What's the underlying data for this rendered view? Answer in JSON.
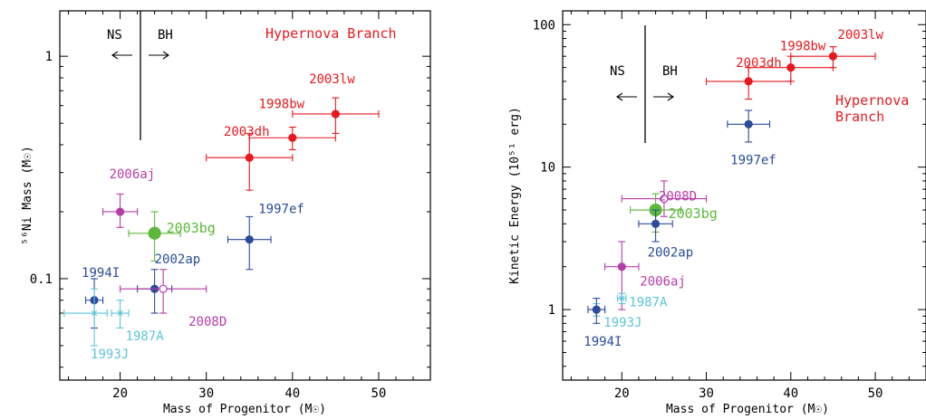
{
  "chart_data": [
    {
      "type": "scatter",
      "yscale": "log",
      "xlabel": "Mass of Progenitor (M☉)",
      "ylabel": "⁵⁶Ni Mass (M☉)",
      "xlim": [
        13,
        56
      ],
      "ylim": [
        0.035,
        1.6
      ],
      "xticks": [
        20,
        30,
        40,
        50
      ],
      "yticks": [
        0.1,
        1
      ],
      "yticklabels": [
        "0.1",
        "1"
      ],
      "divider_x": 22.5,
      "ns_label": "NS",
      "bh_label": "BH",
      "region_label": "Hypernova Branch",
      "region_color": "#e8191f",
      "points": [
        {
          "name": "2003lw",
          "x": 45,
          "y": 0.55,
          "xerr": [
            40,
            50
          ],
          "yerr": [
            0.45,
            0.65
          ],
          "color": "#e8191f",
          "filled": true,
          "size": "normal"
        },
        {
          "name": "1998bw",
          "x": 40,
          "y": 0.43,
          "xerr": [
            35,
            45
          ],
          "yerr": [
            0.38,
            0.48
          ],
          "color": "#e8191f",
          "filled": true,
          "size": "normal"
        },
        {
          "name": "2003dh",
          "x": 35,
          "y": 0.35,
          "xerr": [
            30,
            40
          ],
          "yerr": [
            0.25,
            0.45
          ],
          "color": "#e8191f",
          "filled": true,
          "size": "normal"
        },
        {
          "name": "2006aj",
          "x": 20,
          "y": 0.2,
          "xerr": [
            18,
            22
          ],
          "yerr": [
            0.17,
            0.24
          ],
          "color": "#b83ca8",
          "filled": true,
          "size": "normal"
        },
        {
          "name": "2003bg",
          "x": 24,
          "y": 0.16,
          "xerr": [
            21,
            27
          ],
          "yerr": [
            0.12,
            0.2
          ],
          "color": "#5db83b",
          "filled": true,
          "size": "large"
        },
        {
          "name": "1997ef",
          "x": 35,
          "y": 0.15,
          "xerr": [
            32.5,
            37.5
          ],
          "yerr": [
            0.11,
            0.19
          ],
          "color": "#2c4c9a",
          "filled": true,
          "size": "normal"
        },
        {
          "name": "2002ap",
          "x": 24,
          "y": 0.09,
          "xerr": [
            22,
            26
          ],
          "yerr": [
            0.07,
            0.11
          ],
          "color": "#2c4c9a",
          "filled": true,
          "size": "normal"
        },
        {
          "name": "2008D",
          "x": 25,
          "y": 0.09,
          "xerr": [
            20,
            30
          ],
          "yerr": [
            0.07,
            0.11
          ],
          "color": "#b83ca8",
          "filled": false,
          "size": "normal"
        },
        {
          "name": "1994I",
          "x": 17,
          "y": 0.08,
          "xerr": [
            16,
            18
          ],
          "yerr": [
            0.06,
            0.1
          ],
          "color": "#2c4c9a",
          "filled": true,
          "size": "normal"
        },
        {
          "name": "1993J",
          "x": 17,
          "y": 0.07,
          "xerr": [
            13.5,
            18.5
          ],
          "yerr": [
            0.05,
            0.09
          ],
          "color": "#5ec4d9",
          "filled": false,
          "size": "star"
        },
        {
          "name": "1987A",
          "x": 20,
          "y": 0.07,
          "xerr": [
            19,
            21
          ],
          "yerr": [
            0.06,
            0.08
          ],
          "color": "#5ec4d9",
          "filled": false,
          "size": "star"
        }
      ]
    },
    {
      "type": "scatter",
      "yscale": "log",
      "xlabel": "Mass of Progenitor (M☉)",
      "ylabel": "Kinetic Energy (10⁵¹ erg)",
      "xlim": [
        13,
        56
      ],
      "ylim": [
        0.32,
        125
      ],
      "xticks": [
        20,
        30,
        40,
        50
      ],
      "yticks": [
        1,
        10,
        100
      ],
      "yticklabels": [
        "1",
        "10",
        "100"
      ],
      "divider_x": 22.5,
      "ns_label": "NS",
      "bh_label": "BH",
      "region_label_lines": [
        "Hypernova",
        "Branch"
      ],
      "region_color": "#e8191f",
      "points": [
        {
          "name": "2003lw",
          "x": 45,
          "y": 60,
          "xerr": [
            40,
            50
          ],
          "yerr": [
            50,
            70
          ],
          "color": "#e8191f",
          "filled": true,
          "size": "normal"
        },
        {
          "name": "1998bw",
          "x": 40,
          "y": 50,
          "xerr": [
            35,
            45
          ],
          "yerr": [
            40,
            60
          ],
          "color": "#e8191f",
          "filled": true,
          "size": "normal"
        },
        {
          "name": "2003dh",
          "x": 35,
          "y": 40,
          "xerr": [
            30,
            40
          ],
          "yerr": [
            30,
            50
          ],
          "color": "#e8191f",
          "filled": true,
          "size": "normal"
        },
        {
          "name": "1997ef",
          "x": 35,
          "y": 20,
          "xerr": [
            32.5,
            37.5
          ],
          "yerr": [
            15,
            25
          ],
          "color": "#2c4c9a",
          "filled": true,
          "size": "normal"
        },
        {
          "name": "2008D",
          "x": 25,
          "y": 6,
          "xerr": [
            20,
            30
          ],
          "yerr": [
            4.5,
            8
          ],
          "color": "#b83ca8",
          "filled": false,
          "size": "normal"
        },
        {
          "name": "2003bg",
          "x": 24,
          "y": 5,
          "xerr": [
            21,
            27
          ],
          "yerr": [
            3.5,
            6.5
          ],
          "color": "#5db83b",
          "filled": true,
          "size": "large"
        },
        {
          "name": "2002ap",
          "x": 24,
          "y": 4,
          "xerr": [
            22,
            26
          ],
          "yerr": [
            3,
            5
          ],
          "color": "#2c4c9a",
          "filled": true,
          "size": "normal"
        },
        {
          "name": "2006aj",
          "x": 20,
          "y": 2,
          "xerr": [
            18,
            22
          ],
          "yerr": [
            1,
            3
          ],
          "color": "#b83ca8",
          "filled": true,
          "size": "normal"
        },
        {
          "name": "1987A",
          "x": 20,
          "y": 1.2,
          "xerr": [
            19.5,
            20.5
          ],
          "yerr": [
            1.1,
            1.3
          ],
          "color": "#5ec4d9",
          "filled": false,
          "size": "star"
        },
        {
          "name": "1993J",
          "x": 17,
          "y": 1,
          "xerr": [
            16,
            18
          ],
          "yerr": [
            0.9,
            1.1
          ],
          "color": "#5ec4d9",
          "filled": false,
          "size": "star"
        },
        {
          "name": "1994I",
          "x": 17,
          "y": 1,
          "xerr": [
            16,
            18
          ],
          "yerr": [
            0.8,
            1.2
          ],
          "color": "#2c4c9a",
          "filled": true,
          "size": "normal"
        }
      ]
    }
  ]
}
